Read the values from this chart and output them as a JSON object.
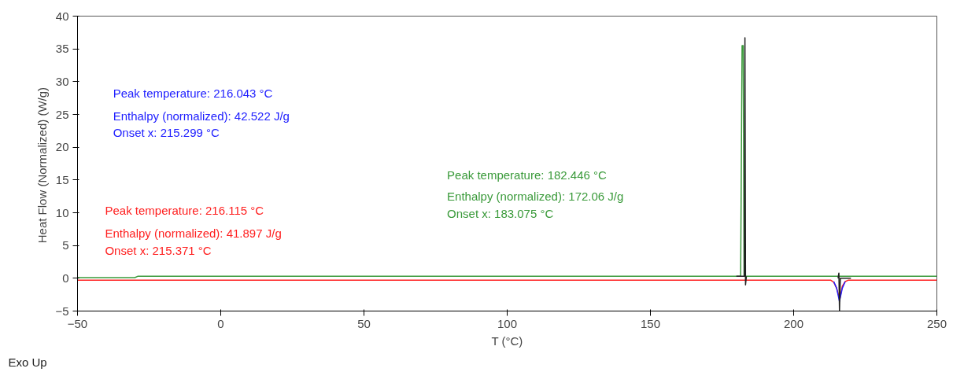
{
  "chart_data": {
    "type": "line",
    "xlabel": "T (°C)",
    "ylabel": "Heat Flow (Normalized)  (W/g)",
    "xlim": [
      -50,
      250
    ],
    "ylim": [
      -5,
      40
    ],
    "xticks": [
      -50,
      0,
      50,
      100,
      150,
      200,
      250
    ],
    "yticks": [
      -5,
      0,
      5,
      10,
      15,
      20,
      25,
      30,
      35,
      40
    ],
    "grid": false,
    "series": [
      {
        "color": "#3a9a3a",
        "x": [
          -50,
          -30,
          -29,
          181.5,
          182,
          182.4,
          182.7,
          250
        ],
        "values": [
          0.1,
          0.1,
          0.3,
          0.3,
          35.5,
          35.5,
          0.3,
          0.3
        ]
      },
      {
        "color": "#ff2020",
        "x": [
          -50,
          213,
          214,
          215,
          216.1,
          217,
          218,
          219,
          250
        ],
        "values": [
          -0.3,
          -0.3,
          -0.6,
          -1.5,
          -3.2,
          -1.2,
          -0.5,
          -0.3,
          -0.3
        ]
      },
      {
        "color": "#2020ff",
        "x": [
          214,
          215,
          216,
          217,
          218
        ],
        "values": [
          -0.5,
          -1.5,
          -3.5,
          -1.5,
          -0.5
        ]
      },
      {
        "color": "#202020",
        "x": [
          180,
          182.8,
          183,
          183.2,
          183.5,
          210,
          215.5,
          215.8,
          216,
          216.3,
          220
        ],
        "values": [
          0.3,
          0.3,
          36.7,
          -1,
          0.3,
          null,
          0,
          0.8,
          -5,
          0,
          0
        ]
      }
    ],
    "annotations": [
      "Peak temperature: 216.043 °C",
      "Enthalpy (normalized): 42.522 J/g",
      "Onset x: 215.299 °C",
      "Peak temperature: 182.446 °C",
      "Enthalpy (normalized): 172.06 J/g",
      "Onset x: 183.075 °C",
      "Peak temperature: 216.115 °C",
      "Enthalpy (normalized): 41.897 J/g",
      "Onset x: 215.371 °C",
      "Exo Up"
    ]
  }
}
